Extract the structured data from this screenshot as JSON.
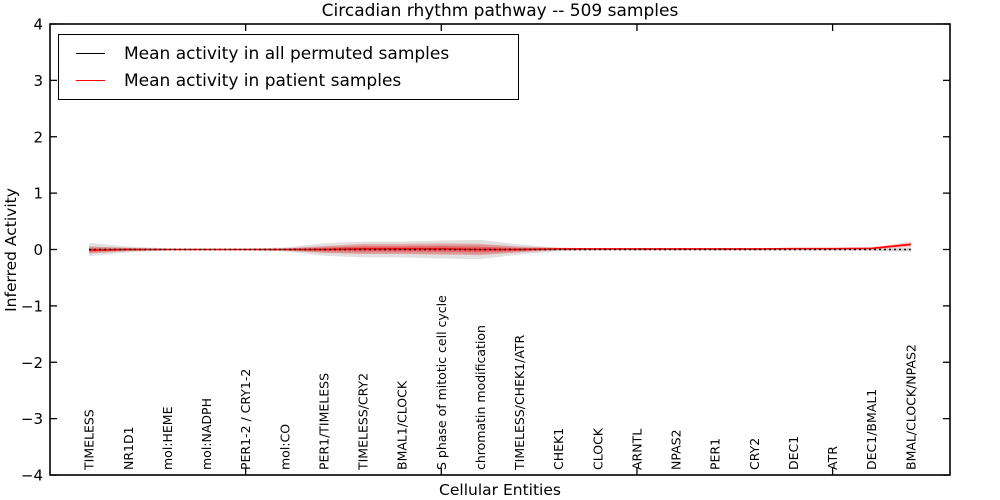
{
  "chart_data": {
    "type": "line",
    "title": "Circadian rhythm pathway -- 509 samples",
    "xlabel": "Cellular Entities",
    "ylabel": "Inferred Activity",
    "ylim": [
      -4,
      4
    ],
    "xlim": [
      0,
      23
    ],
    "grid": false,
    "legend_position": "upper left",
    "yticks": [
      {
        "v": 4,
        "label": "4"
      },
      {
        "v": 3,
        "label": "3"
      },
      {
        "v": 2,
        "label": "2"
      },
      {
        "v": 1,
        "label": "1"
      },
      {
        "v": 0,
        "label": "0"
      },
      {
        "v": -1,
        "label": "−1"
      },
      {
        "v": -2,
        "label": "−2"
      },
      {
        "v": -3,
        "label": "−3"
      },
      {
        "v": -4,
        "label": "−4"
      }
    ],
    "xticks_unlabeled": [
      5,
      10,
      15,
      20
    ],
    "categories": [
      "TIMELESS",
      "NR1D1",
      "mol:HEME",
      "mol:NADPH",
      "PER1-2 / CRY1-2",
      "mol:CO",
      "PER1/TIMELESS",
      "TIMELESS/CRY2",
      "BMAL1/CLOCK",
      "S phase of mitotic cell cycle",
      "chromatin modification",
      "TIMELESS/CHEK1/ATR",
      "CHEK1",
      "CLOCK",
      "ARNTL",
      "NPAS2",
      "PER1",
      "CRY2",
      "DEC1",
      "ATR",
      "DEC1/BMAL1",
      "BMAL/CLOCK/NPAS2"
    ],
    "series": [
      {
        "name": "Mean activity in all permuted samples",
        "color": "#000000",
        "line_style": "dotted",
        "band_color": "#999999",
        "mean": [
          0,
          0,
          0,
          0,
          0,
          0,
          0,
          0,
          0,
          0,
          0,
          0,
          0,
          0,
          0,
          0,
          0,
          0,
          0,
          0,
          0,
          0
        ],
        "std": [
          0.12,
          0.05,
          0.02,
          0.015,
          0.015,
          0.035,
          0.11,
          0.14,
          0.14,
          0.16,
          0.17,
          0.09,
          0.03,
          0.02,
          0.02,
          0.02,
          0.02,
          0.02,
          0.02,
          0.02,
          0.025,
          0.04
        ]
      },
      {
        "name": "Mean activity in patient samples",
        "color": "#ff0000",
        "line_style": "solid",
        "band_color": "#ff0000",
        "mean": [
          -0.01,
          0,
          0,
          0,
          0,
          0,
          0,
          0.01,
          0.01,
          0.01,
          0,
          0,
          0.01,
          0.01,
          0.01,
          0.01,
          0.01,
          0.01,
          0.015,
          0.015,
          0.02,
          0.09
        ],
        "std": [
          0.06,
          0.03,
          0.01,
          0.01,
          0.01,
          0.02,
          0.06,
          0.09,
          0.09,
          0.1,
          0.1,
          0.05,
          0.02,
          0.015,
          0.015,
          0.015,
          0.015,
          0.015,
          0.015,
          0.015,
          0.02,
          0.04
        ]
      }
    ]
  }
}
